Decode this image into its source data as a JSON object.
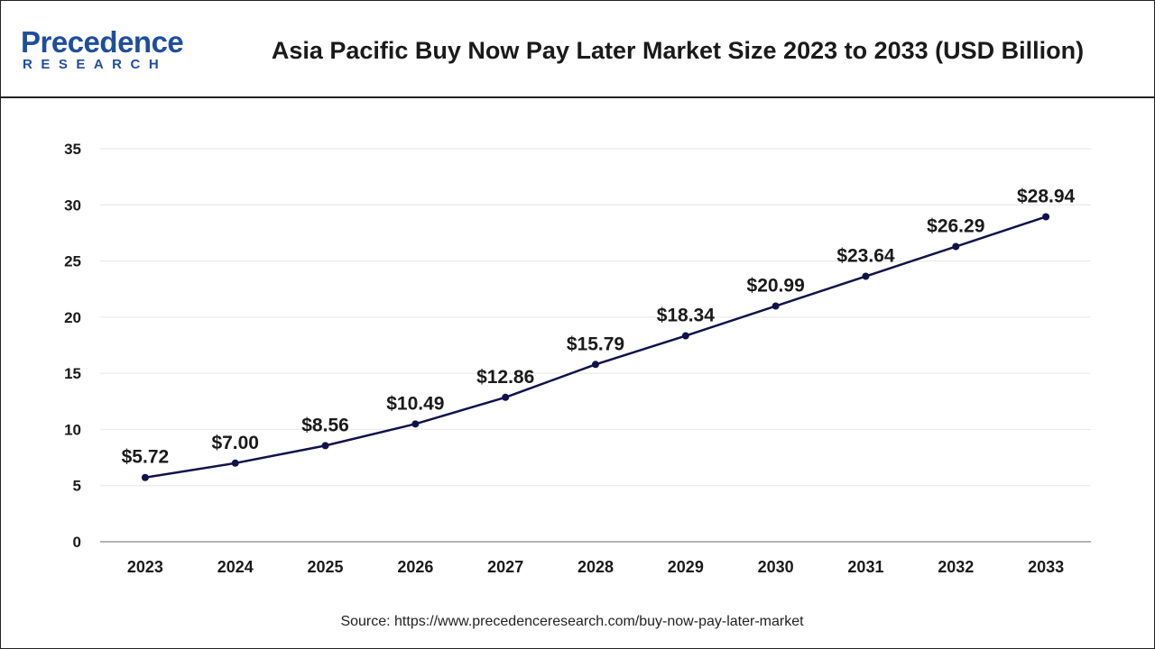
{
  "header": {
    "logo_word": "Precedence",
    "logo_sub": "RESEARCH",
    "title": "Asia Pacific Buy Now Pay Later Market Size 2023 to 2033 (USD Billion)"
  },
  "source": "Source: https://www.precedenceresearch.com/buy-now-pay-later-market",
  "colors": {
    "line": "#12124a",
    "grid": "#e6e6e6",
    "axis": "#9a9a9a",
    "brand": "#1f4e9c"
  },
  "chart_data": {
    "type": "line",
    "title": "Asia Pacific Buy Now Pay Later Market Size 2023 to 2033 (USD Billion)",
    "categories": [
      "2023",
      "2024",
      "2025",
      "2026",
      "2027",
      "2028",
      "2029",
      "2030",
      "2031",
      "2032",
      "2033"
    ],
    "values": [
      5.72,
      7.0,
      8.56,
      10.49,
      12.86,
      15.79,
      18.34,
      20.99,
      23.64,
      26.29,
      28.94
    ],
    "data_labels": [
      "$5.72",
      "$7.00",
      "$8.56",
      "$10.49",
      "$12.86",
      "$15.79",
      "$18.34",
      "$20.99",
      "$23.64",
      "$26.29",
      "$28.94"
    ],
    "yticks": [
      "0",
      "5",
      "10",
      "15",
      "20",
      "25",
      "30",
      "35"
    ],
    "ylim": [
      0,
      35
    ],
    "grid": true,
    "legend": "none",
    "xlabel": "",
    "ylabel": ""
  }
}
